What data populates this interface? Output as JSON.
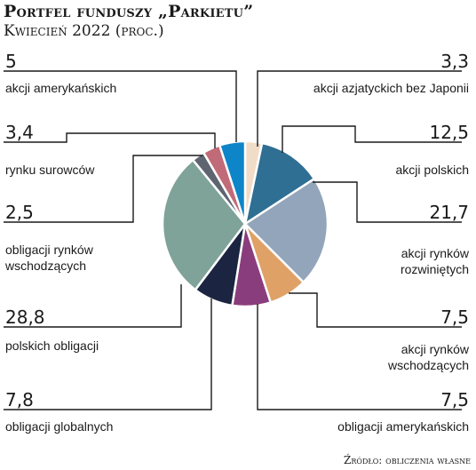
{
  "header": {
    "title": "Portfel funduszy „Parkietu”",
    "subtitle": "Kwiecień 2022 (proc.)"
  },
  "source": "Źródło: obliczenia własne",
  "chart_data": {
    "type": "pie",
    "title": "Portfel funduszy „Parkietu”",
    "subtitle": "Kwiecień 2022 (proc.)",
    "slices": [
      {
        "value": 3.3,
        "value_text": "3,3",
        "label": [
          "akcji azjatyckich bez Japonii"
        ],
        "color": "#f1dcc8"
      },
      {
        "value": 12.5,
        "value_text": "12,5",
        "label": [
          "akcji polskich"
        ],
        "color": "#2f6f93"
      },
      {
        "value": 21.7,
        "value_text": "21,7",
        "label": [
          "akcji rynków",
          "rozwiniętych"
        ],
        "color": "#93a5ba"
      },
      {
        "value": 7.5,
        "value_text": "7,5",
        "label": [
          "akcji rynków",
          "wschodzących"
        ],
        "color": "#dfa166"
      },
      {
        "value": 7.5,
        "value_text": "7,5",
        "label": [
          "obligacji amerykańskich"
        ],
        "color": "#8a3d7c"
      },
      {
        "value": 7.8,
        "value_text": "7,8",
        "label": [
          "obligacji globalnych"
        ],
        "color": "#1b2440"
      },
      {
        "value": 28.8,
        "value_text": "28,8",
        "label": [
          "polskich obligacji"
        ],
        "color": "#7fa299"
      },
      {
        "value": 2.5,
        "value_text": "2,5",
        "label": [
          "obligacji rynków",
          "wschodzących"
        ],
        "color": "#5e6470"
      },
      {
        "value": 3.4,
        "value_text": "3,4",
        "label": [
          "rynku surowców"
        ],
        "color": "#c16a78"
      },
      {
        "value": 5,
        "value_text": "5",
        "label": [
          "akcji amerykańskich"
        ],
        "color": "#0e85c8"
      }
    ]
  }
}
